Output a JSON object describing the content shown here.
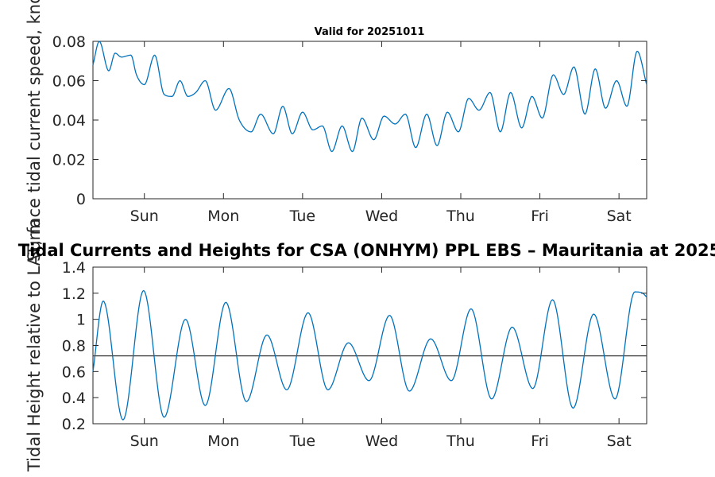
{
  "chart_data": [
    {
      "type": "line",
      "title": "Valid for 20251011",
      "xlabel": "",
      "ylabel": "Surface tidal current speed, knots",
      "ylim": [
        0,
        0.08
      ],
      "yticks": [
        0,
        0.02,
        0.04,
        0.06,
        0.08
      ],
      "ytick_labels": [
        "0",
        "0.02",
        "0.04",
        "0.06",
        "0.08"
      ],
      "xlim": [
        0,
        7
      ],
      "xticks": [
        0.65,
        1.65,
        2.65,
        3.65,
        4.65,
        5.65,
        6.65
      ],
      "xtick_labels": [
        "Sun",
        "Mon",
        "Tue",
        "Wed",
        "Thu",
        "Fri",
        "Sat"
      ],
      "series": [
        {
          "name": "current speed",
          "color": "#0072bd",
          "x": [
            0,
            0.08,
            0.2,
            0.28,
            0.36,
            0.48,
            0.55,
            0.65,
            0.78,
            0.9,
            1.0,
            1.1,
            1.2,
            1.3,
            1.42,
            1.55,
            1.72,
            1.85,
            2.0,
            2.12,
            2.28,
            2.4,
            2.52,
            2.65,
            2.78,
            2.9,
            3.02,
            3.15,
            3.28,
            3.4,
            3.55,
            3.68,
            3.82,
            3.95,
            4.08,
            4.22,
            4.35,
            4.48,
            4.62,
            4.75,
            4.88,
            5.02,
            5.15,
            5.28,
            5.42,
            5.55,
            5.68,
            5.82,
            5.95,
            6.08,
            6.22,
            6.35,
            6.48,
            6.62,
            6.75,
            6.88,
            7.0
          ],
          "values": [
            0.068,
            0.08,
            0.065,
            0.074,
            0.072,
            0.073,
            0.063,
            0.058,
            0.073,
            0.053,
            0.052,
            0.06,
            0.052,
            0.054,
            0.06,
            0.045,
            0.056,
            0.04,
            0.034,
            0.043,
            0.033,
            0.047,
            0.033,
            0.044,
            0.035,
            0.037,
            0.024,
            0.037,
            0.024,
            0.041,
            0.03,
            0.042,
            0.038,
            0.043,
            0.026,
            0.043,
            0.027,
            0.044,
            0.034,
            0.051,
            0.045,
            0.054,
            0.034,
            0.054,
            0.036,
            0.052,
            0.041,
            0.063,
            0.053,
            0.067,
            0.043,
            0.066,
            0.046,
            0.06,
            0.047,
            0.075,
            0.058
          ]
        }
      ]
    },
    {
      "type": "line",
      "title": "Tidal Currents and Heights for CSA (ONHYM) PPL EBS  – Mauritania at 2025",
      "xlabel": "",
      "ylabel": "Tidal Height relative to LAT, m",
      "ylim": [
        0.2,
        1.4
      ],
      "yticks": [
        0.2,
        0.4,
        0.6,
        0.8,
        1.0,
        1.2,
        1.4
      ],
      "ytick_labels": [
        "0.2",
        "0.4",
        "0.6",
        "0.8",
        "1",
        "1.2",
        "1.4"
      ],
      "xlim": [
        0,
        7
      ],
      "xticks": [
        0.65,
        1.65,
        2.65,
        3.65,
        4.65,
        5.65,
        6.65
      ],
      "xtick_labels": [
        "Sun",
        "Mon",
        "Tue",
        "Wed",
        "Thu",
        "Fri",
        "Sat"
      ],
      "mean_level": 0.72,
      "series": [
        {
          "name": "tidal height",
          "color": "#0072bd",
          "x": [
            0,
            0.13,
            0.38,
            0.64,
            0.9,
            1.17,
            1.42,
            1.68,
            1.94,
            2.2,
            2.45,
            2.72,
            2.97,
            3.23,
            3.49,
            3.75,
            4.0,
            4.27,
            4.53,
            4.78,
            5.04,
            5.3,
            5.56,
            5.81,
            6.07,
            6.33,
            6.6,
            6.85,
            6.95,
            7.0
          ],
          "values": [
            0.6,
            1.14,
            0.23,
            1.22,
            0.25,
            1.0,
            0.34,
            1.13,
            0.37,
            0.88,
            0.46,
            1.05,
            0.46,
            0.82,
            0.53,
            1.03,
            0.45,
            0.85,
            0.53,
            1.08,
            0.39,
            0.94,
            0.47,
            1.15,
            0.32,
            1.04,
            0.39,
            1.21,
            1.2,
            1.17
          ]
        }
      ]
    }
  ]
}
